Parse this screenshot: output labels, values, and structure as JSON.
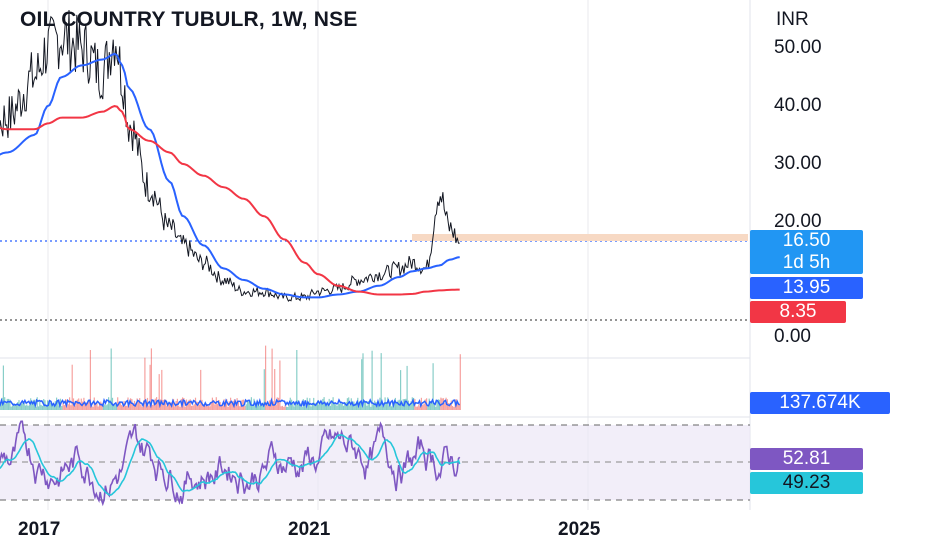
{
  "header": {
    "title": "OIL COUNTRY TUBULR, 1W, NSE",
    "currency": "INR"
  },
  "colors": {
    "price": "#131722",
    "sma_fast": "#2962ff",
    "sma_slow": "#f23645",
    "volume_up": "#26a69a",
    "volume_down": "#ef5350",
    "rsi": "#7e57c2",
    "rsi_ma": "#26c6da",
    "badge_blue": "#2962ff",
    "badge_last": "#2196f3",
    "badge_red": "#f23645"
  },
  "price_axis": {
    "ticks": [
      "50.00",
      "40.00",
      "30.00",
      "20.00",
      "0.00"
    ]
  },
  "time_axis": {
    "ticks": [
      "2017",
      "2021",
      "2025"
    ]
  },
  "badges": {
    "last_price": "16.50",
    "countdown": "1d 5h",
    "sma_fast": "13.95",
    "sma_slow": "8.35",
    "volume_ma": "137.674K",
    "rsi": "52.81",
    "rsi_ma": "49.23"
  },
  "chart_data": {
    "type": "line",
    "title": "OIL COUNTRY TUBULR, 1W, NSE",
    "ylim": [
      0,
      57
    ],
    "x": [
      "2015.6",
      "2016.0",
      "2016.4",
      "2016.8",
      "2017.0",
      "2017.2",
      "2017.5",
      "2017.8",
      "2018.0",
      "2018.1",
      "2018.2",
      "2018.5",
      "2018.8",
      "2019.0",
      "2019.3",
      "2019.6",
      "2019.9",
      "2020.2",
      "2020.5",
      "2020.8",
      "2021.0",
      "2021.3",
      "2021.6",
      "2021.9",
      "2022.2",
      "2022.4",
      "2022.6",
      "2022.8",
      "2022.95",
      "2023.1"
    ],
    "series": [
      {
        "key": "price",
        "values": [
          27,
          33,
          38,
          45,
          50,
          52,
          50,
          46,
          52,
          45,
          37,
          26,
          19,
          16,
          13,
          10,
          8,
          8,
          7,
          7,
          8,
          8.5,
          10,
          11,
          12,
          13,
          12,
          25,
          19,
          16.5
        ]
      },
      {
        "key": "sma_fast",
        "values": [
          28,
          30,
          32,
          35,
          40,
          45,
          47,
          48,
          49,
          47,
          43,
          36,
          27,
          21,
          16,
          12,
          10,
          8.5,
          7.5,
          7,
          7,
          7.5,
          8,
          9,
          10.5,
          11.5,
          12,
          12.5,
          13.5,
          13.95
        ]
      },
      {
        "key": "sma_slow",
        "values": [
          39,
          37,
          36,
          36,
          37,
          38,
          38,
          39,
          40,
          39,
          36,
          34,
          32,
          30,
          28,
          26,
          24,
          21,
          17,
          13,
          11,
          9,
          8,
          7.5,
          7.5,
          7.6,
          8,
          8.2,
          8.3,
          8.35
        ]
      }
    ],
    "volume_ma_last": "137.674K",
    "rsi": {
      "last": 52.81,
      "ma_last": 49.23,
      "bands": [
        70,
        50,
        30
      ]
    }
  }
}
